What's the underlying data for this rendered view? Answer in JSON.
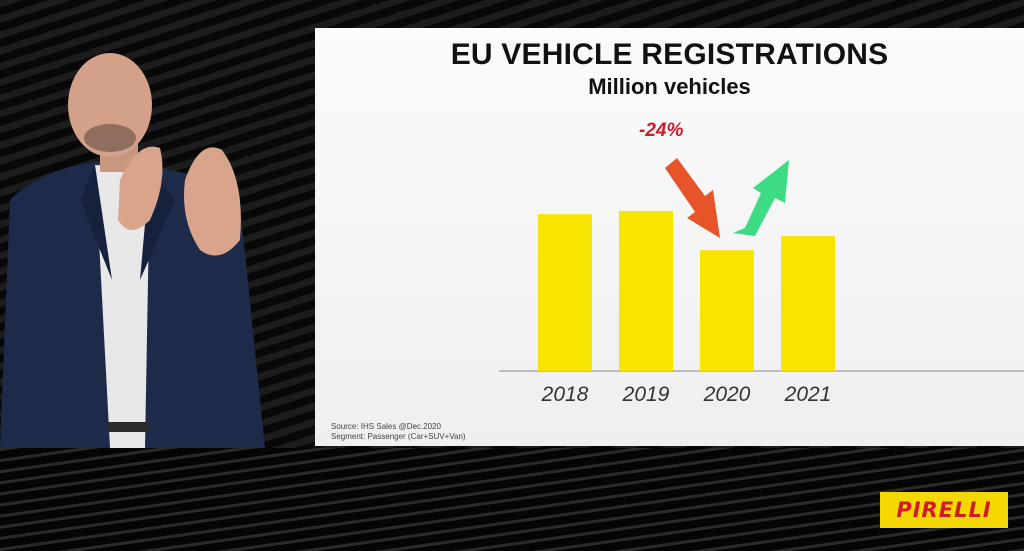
{
  "slide": {
    "title": "EU VEHICLE REGISTRATIONS",
    "subtitle": "Million vehicles",
    "change_label": "-24%",
    "source_line1": "Source: IHS Sales @Dec.2020",
    "source_line2": "Segment: Passenger (Car+SUV+Van)"
  },
  "chart_data": {
    "type": "bar",
    "title": "EU VEHICLE REGISTRATIONS",
    "subtitle": "Million vehicles",
    "categories": [
      "2018",
      "2019",
      "2020",
      "2021"
    ],
    "values": [
      1.0,
      1.02,
      0.77,
      0.86
    ],
    "bar_color": "#f7e500",
    "annotations": [
      {
        "text": "-24%",
        "between": [
          "2019",
          "2020"
        ],
        "color": "#d11a2a"
      }
    ],
    "arrows": [
      {
        "direction": "down",
        "near": "2020",
        "color": "#e8542a"
      },
      {
        "direction": "up",
        "near": "2020",
        "color": "#3ddc84"
      }
    ]
  },
  "brand": {
    "logo_text": "PIRELLI",
    "logo_bg": "#f5d800",
    "logo_fg": "#d11a2a"
  }
}
